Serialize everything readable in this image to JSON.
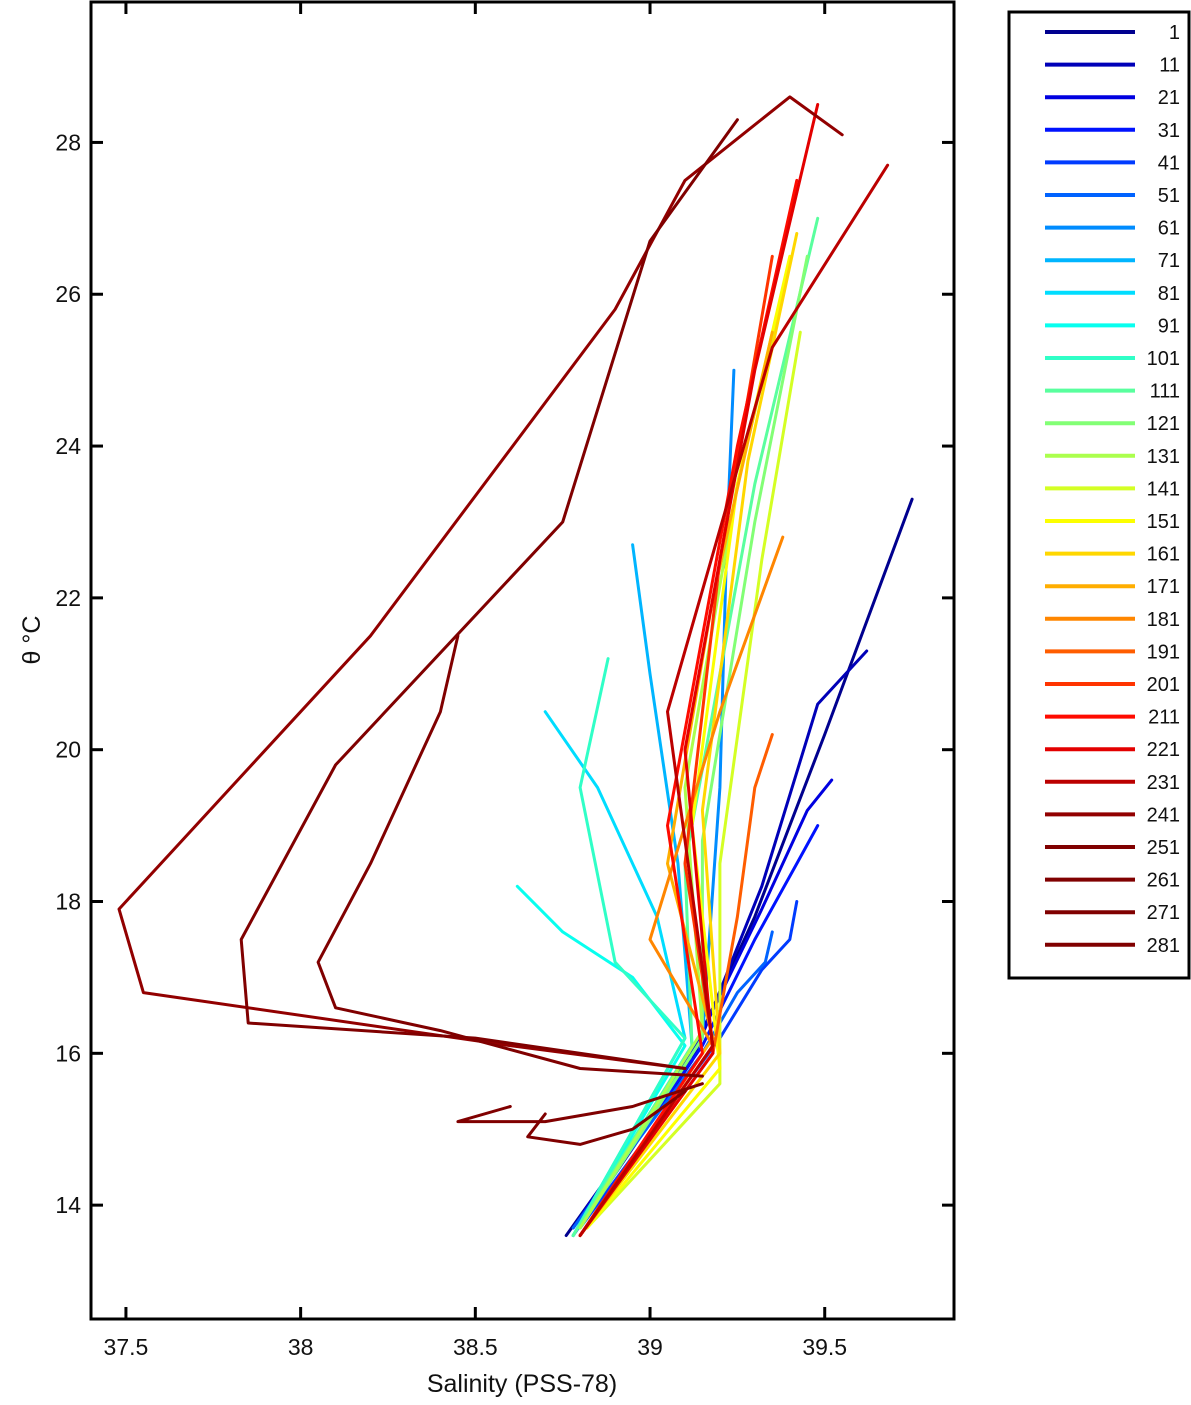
{
  "chart_data": {
    "type": "line",
    "title": "",
    "xlabel": "Salinity (PSS-78)",
    "ylabel": "θ °C",
    "xlim": [
      37.4,
      39.87
    ],
    "ylim": [
      12.5,
      29.85
    ],
    "xticks": [
      37.5,
      38,
      38.5,
      39,
      39.5
    ],
    "xtick_labels": [
      "37.5",
      "38",
      "38.5",
      "39",
      "39.5"
    ],
    "yticks": [
      14,
      16,
      18,
      20,
      22,
      24,
      26,
      28
    ],
    "ytick_labels": [
      "14",
      "16",
      "18",
      "20",
      "22",
      "24",
      "26",
      "28"
    ],
    "grid": false,
    "legend_position": "outside-right",
    "legend_labels": [
      "1",
      "11",
      "21",
      "31",
      "41",
      "51",
      "61",
      "71",
      "81",
      "91",
      "101",
      "111",
      "121",
      "131",
      "141",
      "151",
      "161",
      "171",
      "181",
      "191",
      "201",
      "211",
      "221",
      "231",
      "241",
      "251",
      "261",
      "271",
      "281"
    ],
    "series_colors": [
      "#00008f",
      "#0000b8",
      "#0000e0",
      "#0012ff",
      "#003bff",
      "#0063ff",
      "#008cff",
      "#00b5ff",
      "#00ddff",
      "#08ffef",
      "#30ffc7",
      "#59ff9e",
      "#82ff75",
      "#abff4d",
      "#d4ff24",
      "#fcff00",
      "#ffd700",
      "#ffae00",
      "#ff8600",
      "#ff5d00",
      "#ff3400",
      "#ff0b00",
      "#e30000",
      "#bb0000",
      "#920000",
      "#800000",
      "#800000",
      "#800000",
      "#800000"
    ],
    "series": [
      {
        "name": "1",
        "x": [
          38.76,
          39.1,
          39.3,
          39.5,
          39.75
        ],
        "y": [
          13.6,
          15.8,
          17.8,
          20.2,
          23.3
        ]
      },
      {
        "name": "11",
        "x": [
          38.78,
          39.12,
          39.32,
          39.48,
          39.62
        ],
        "y": [
          13.6,
          15.9,
          18.2,
          20.6,
          21.3
        ]
      },
      {
        "name": "21",
        "x": [
          38.78,
          39.12,
          39.32,
          39.45,
          39.52
        ],
        "y": [
          13.7,
          16.0,
          17.9,
          19.2,
          19.6
        ]
      },
      {
        "name": "31",
        "x": [
          38.8,
          39.15,
          39.3,
          39.42,
          39.48
        ],
        "y": [
          13.8,
          16.1,
          17.5,
          18.5,
          19.0
        ]
      },
      {
        "name": "41",
        "x": [
          38.8,
          39.2,
          39.32,
          39.4,
          39.42
        ],
        "y": [
          13.7,
          16.2,
          17.1,
          17.5,
          18.0
        ]
      },
      {
        "name": "51",
        "x": [
          38.78,
          39.15,
          39.25,
          39.33,
          39.35
        ],
        "y": [
          13.7,
          16.0,
          16.8,
          17.2,
          17.6
        ]
      },
      {
        "name": "61",
        "x": [
          38.8,
          39.15,
          39.2,
          39.22,
          39.24
        ],
        "y": [
          13.7,
          16.2,
          19.5,
          22.8,
          25.0
        ]
      },
      {
        "name": "71",
        "x": [
          38.78,
          39.12,
          39.08,
          39.0,
          38.95
        ],
        "y": [
          13.6,
          16.1,
          18.5,
          21.0,
          22.7
        ]
      },
      {
        "name": "81",
        "x": [
          38.78,
          39.1,
          39.02,
          38.85,
          38.7
        ],
        "y": [
          13.6,
          16.2,
          17.8,
          19.5,
          20.5
        ]
      },
      {
        "name": "91",
        "x": [
          38.78,
          39.1,
          38.95,
          38.75,
          38.62
        ],
        "y": [
          13.6,
          16.1,
          17.0,
          17.6,
          18.2
        ]
      },
      {
        "name": "101",
        "x": [
          38.78,
          39.1,
          38.9,
          38.8,
          38.88
        ],
        "y": [
          13.6,
          16.2,
          17.2,
          19.5,
          21.2
        ]
      },
      {
        "name": "111",
        "x": [
          38.78,
          39.12,
          39.1,
          39.3,
          39.48
        ],
        "y": [
          13.6,
          16.1,
          18.5,
          23.5,
          27.0
        ]
      },
      {
        "name": "121",
        "x": [
          38.8,
          39.15,
          39.15,
          39.3,
          39.45
        ],
        "y": [
          13.7,
          16.2,
          18.8,
          23.0,
          26.5
        ]
      },
      {
        "name": "131",
        "x": [
          38.8,
          39.15,
          39.1,
          39.25,
          39.38
        ],
        "y": [
          13.7,
          16.3,
          19.5,
          23.5,
          26.0
        ]
      },
      {
        "name": "141",
        "x": [
          38.82,
          39.2,
          39.2,
          39.32,
          39.43
        ],
        "y": [
          13.7,
          15.6,
          18.5,
          22.5,
          25.5
        ]
      },
      {
        "name": "151",
        "x": [
          38.82,
          39.2,
          39.12,
          39.25,
          39.4
        ],
        "y": [
          13.7,
          15.8,
          19.0,
          23.5,
          26.5
        ]
      },
      {
        "name": "161",
        "x": [
          38.8,
          39.2,
          39.15,
          39.28,
          39.42
        ],
        "y": [
          13.6,
          16.0,
          19.2,
          23.8,
          26.8
        ]
      },
      {
        "name": "171",
        "x": [
          38.8,
          39.18,
          39.05,
          39.18,
          39.35
        ],
        "y": [
          13.6,
          16.2,
          18.5,
          22.0,
          25.5
        ]
      },
      {
        "name": "181",
        "x": [
          38.8,
          39.18,
          39.0,
          39.2,
          39.38
        ],
        "y": [
          13.6,
          16.1,
          17.5,
          20.5,
          22.8
        ]
      },
      {
        "name": "191",
        "x": [
          38.8,
          39.18,
          39.25,
          39.3,
          39.35
        ],
        "y": [
          13.6,
          16.0,
          17.8,
          19.5,
          20.2
        ]
      },
      {
        "name": "201",
        "x": [
          38.8,
          39.18,
          39.1,
          39.2,
          39.35
        ],
        "y": [
          13.6,
          16.1,
          18.5,
          22.5,
          26.5
        ]
      },
      {
        "name": "211",
        "x": [
          38.8,
          39.15,
          39.05,
          39.25,
          39.42
        ],
        "y": [
          13.6,
          16.0,
          19.0,
          24.0,
          27.5
        ]
      },
      {
        "name": "221",
        "x": [
          38.8,
          39.18,
          39.1,
          39.3,
          39.48
        ],
        "y": [
          13.6,
          16.0,
          20.0,
          25.0,
          28.5
        ]
      },
      {
        "name": "231",
        "x": [
          38.8,
          39.18,
          39.05,
          39.35,
          39.68
        ],
        "y": [
          13.6,
          16.1,
          20.5,
          25.3,
          27.7
        ]
      },
      {
        "name": "241",
        "x": [
          39.1,
          38.6,
          37.55,
          37.48,
          37.7,
          38.2,
          38.9,
          39.1,
          39.4,
          39.55
        ],
        "y": [
          15.8,
          16.1,
          16.8,
          17.9,
          19.0,
          21.5,
          25.8,
          27.5,
          28.6,
          28.1
        ]
      },
      {
        "name": "251",
        "x": [
          39.1,
          38.5,
          37.85,
          37.83,
          38.1,
          38.75,
          39.0,
          39.25
        ],
        "y": [
          15.8,
          16.2,
          16.4,
          17.5,
          19.8,
          23.0,
          26.7,
          28.3
        ]
      },
      {
        "name": "261",
        "x": [
          39.15,
          38.8,
          38.4,
          38.1,
          38.05,
          38.2,
          38.4,
          38.45
        ],
        "y": [
          15.7,
          15.8,
          16.3,
          16.6,
          17.2,
          18.5,
          20.5,
          21.5
        ]
      },
      {
        "name": "271",
        "x": [
          39.15,
          38.95,
          38.7,
          38.45,
          38.6
        ],
        "y": [
          15.6,
          15.3,
          15.1,
          15.1,
          15.3
        ]
      },
      {
        "name": "281",
        "x": [
          39.1,
          38.95,
          38.8,
          38.65,
          38.7
        ],
        "y": [
          15.5,
          15.0,
          14.8,
          14.9,
          15.2
        ]
      }
    ]
  }
}
